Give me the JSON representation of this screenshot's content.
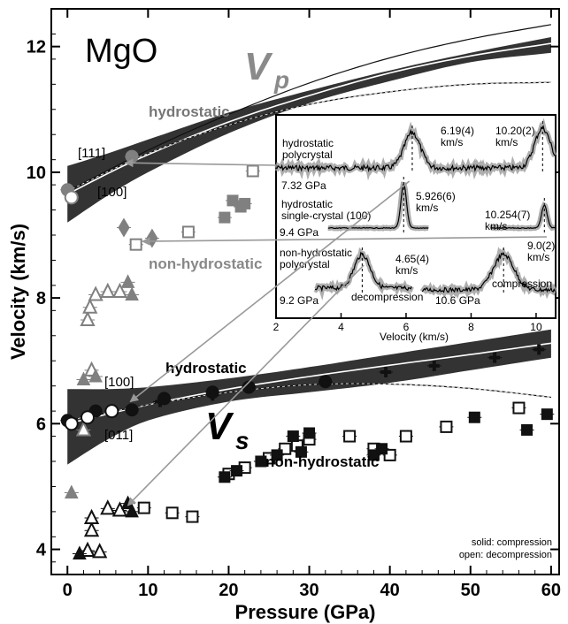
{
  "chart_data": {
    "type": "scatter",
    "title": "MgO",
    "xlabel": "Pressure (GPa)",
    "ylabel": "Velocity (km/s)",
    "xlim": [
      -2,
      61
    ],
    "ylim": [
      3.6,
      12.6
    ],
    "xticks": [
      0,
      10,
      20,
      30,
      40,
      50,
      60
    ],
    "yticks": [
      4,
      6,
      8,
      10,
      12
    ],
    "grid": false,
    "labels": {
      "vp_main": "V",
      "vp_sub": "p",
      "vs_main": "V",
      "vs_sub": "s",
      "vp_hydro": "hydrostatic",
      "vp_nonhydro": "non-hydrostatic",
      "vs_hydro": "hydrostatic",
      "vs_nonhydro": "non-hydrostatic",
      "dir_111": "[111]",
      "dir_100_p": "[100]",
      "dir_100_s": "[100]",
      "dir_011": "[011]",
      "legend_solid": "solid: compression",
      "legend_open": "open: decompression"
    },
    "colors": {
      "band": "#333333",
      "gray_marker": "#808080",
      "dark_marker": "#111111",
      "vp_label": "#8a8a8a"
    },
    "curves": {
      "vp_band_upper": [
        [
          0,
          10.1
        ],
        [
          5,
          10.3
        ],
        [
          10,
          10.52
        ],
        [
          20,
          10.95
        ],
        [
          30,
          11.3
        ],
        [
          40,
          11.62
        ],
        [
          50,
          11.9
        ],
        [
          60,
          12.15
        ]
      ],
      "vp_band_lower": [
        [
          0,
          9.2
        ],
        [
          5,
          9.63
        ],
        [
          10,
          10.0
        ],
        [
          20,
          10.62
        ],
        [
          30,
          11.1
        ],
        [
          40,
          11.45
        ],
        [
          50,
          11.75
        ],
        [
          60,
          11.9
        ]
      ],
      "vp_fit_main": [
        [
          0,
          9.65
        ],
        [
          5,
          9.98
        ],
        [
          10,
          10.28
        ],
        [
          20,
          10.8
        ],
        [
          30,
          11.22
        ],
        [
          40,
          11.58
        ],
        [
          50,
          11.85
        ],
        [
          60,
          12.05
        ]
      ],
      "vp_fit_upper": [
        [
          0,
          9.7
        ],
        [
          10,
          10.35
        ],
        [
          20,
          10.92
        ],
        [
          30,
          11.42
        ],
        [
          40,
          11.82
        ],
        [
          50,
          12.12
        ],
        [
          60,
          12.35
        ]
      ],
      "vp_fit_flat": [
        [
          0,
          9.7
        ],
        [
          10,
          10.3
        ],
        [
          20,
          10.75
        ],
        [
          30,
          11.08
        ],
        [
          40,
          11.28
        ],
        [
          50,
          11.4
        ],
        [
          60,
          11.43
        ]
      ],
      "vs_band_upper": [
        [
          0,
          6.55
        ],
        [
          5,
          6.55
        ],
        [
          10,
          6.58
        ],
        [
          20,
          6.72
        ],
        [
          30,
          6.9
        ],
        [
          40,
          7.1
        ],
        [
          50,
          7.3
        ],
        [
          60,
          7.5
        ]
      ],
      "vs_band_lower": [
        [
          0,
          5.35
        ],
        [
          5,
          5.75
        ],
        [
          10,
          6.05
        ],
        [
          20,
          6.35
        ],
        [
          30,
          6.5
        ],
        [
          40,
          6.65
        ],
        [
          50,
          6.85
        ],
        [
          60,
          7.05
        ]
      ],
      "vs_fit_main": [
        [
          0,
          6.0
        ],
        [
          10,
          6.3
        ],
        [
          20,
          6.55
        ],
        [
          30,
          6.75
        ],
        [
          40,
          6.93
        ],
        [
          50,
          7.1
        ],
        [
          60,
          7.28
        ]
      ],
      "vs_fit_flat": [
        [
          0,
          6.05
        ],
        [
          10,
          6.3
        ],
        [
          20,
          6.5
        ],
        [
          30,
          6.62
        ],
        [
          40,
          6.63
        ],
        [
          50,
          6.56
        ],
        [
          60,
          6.42
        ]
      ]
    },
    "series": [
      {
        "shape": "square",
        "fill": "open",
        "color": "#808080",
        "points": [
          [
            8.5,
            8.85
          ],
          [
            15,
            9.05
          ],
          [
            23,
            10.02
          ]
        ]
      },
      {
        "shape": "square",
        "fill": "solid",
        "color": "#808080",
        "points": [
          [
            19.5,
            9.28
          ],
          [
            20.5,
            9.55
          ],
          [
            21.5,
            9.45
          ],
          [
            22,
            9.5
          ]
        ]
      },
      {
        "shape": "diamond",
        "fill": "solid",
        "color": "#808080",
        "points": [
          [
            7,
            9.12
          ],
          [
            10.5,
            8.95
          ]
        ]
      },
      {
        "shape": "triangle",
        "fill": "open",
        "color": "#808080",
        "points": [
          [
            2.5,
            7.65
          ],
          [
            2.8,
            7.85
          ],
          [
            3.5,
            8.05
          ],
          [
            5,
            8.1
          ],
          [
            6.5,
            8.1
          ],
          [
            3,
            6.85
          ],
          [
            2,
            5.9
          ]
        ]
      },
      {
        "shape": "triangle",
        "fill": "solid",
        "color": "#808080",
        "points": [
          [
            7.5,
            8.25
          ],
          [
            8,
            8.05
          ],
          [
            3.5,
            6.75
          ],
          [
            2,
            6.7
          ],
          [
            0.5,
            4.9
          ]
        ]
      },
      {
        "shape": "circle",
        "fill": "solid",
        "color": "#808080",
        "points": [
          [
            0,
            9.72
          ],
          [
            8,
            10.25
          ]
        ]
      },
      {
        "shape": "circle",
        "fill": "open",
        "color": "#808080",
        "points": [
          [
            0.5,
            9.6
          ]
        ]
      },
      {
        "shape": "circle",
        "fill": "solid",
        "color": "#111111",
        "points": [
          [
            0,
            6.05
          ],
          [
            3.5,
            6.2
          ],
          [
            8,
            6.22
          ],
          [
            12,
            6.4
          ],
          [
            18,
            6.5
          ],
          [
            22.5,
            6.58
          ],
          [
            32,
            6.67
          ]
        ]
      },
      {
        "shape": "circle",
        "fill": "open",
        "color": "#111111",
        "points": [
          [
            0.5,
            6.0
          ],
          [
            2.5,
            6.1
          ],
          [
            5.5,
            6.2
          ]
        ]
      },
      {
        "shape": "cross",
        "fill": "solid",
        "color": "#111111",
        "points": [
          [
            11.5,
            6.35
          ],
          [
            18,
            6.45
          ],
          [
            22.5,
            6.6
          ],
          [
            32,
            6.65
          ],
          [
            39.5,
            6.82
          ],
          [
            45.5,
            6.92
          ],
          [
            53,
            7.05
          ],
          [
            58.5,
            7.18
          ]
        ]
      },
      {
        "shape": "square",
        "fill": "open",
        "color": "#111111",
        "points": [
          [
            9.5,
            4.66
          ],
          [
            13,
            4.58
          ],
          [
            15.5,
            4.52
          ],
          [
            20,
            5.2
          ],
          [
            22,
            5.3
          ],
          [
            25,
            5.45
          ],
          [
            27,
            5.6
          ],
          [
            28.5,
            5.65
          ],
          [
            30,
            5.75
          ],
          [
            35,
            5.8
          ],
          [
            38,
            5.6
          ],
          [
            40,
            5.5
          ],
          [
            42,
            5.8
          ],
          [
            47,
            5.95
          ],
          [
            56,
            6.25
          ]
        ]
      },
      {
        "shape": "square",
        "fill": "solid",
        "color": "#111111",
        "points": [
          [
            19.5,
            5.15
          ],
          [
            21,
            5.25
          ],
          [
            24,
            5.4
          ],
          [
            26,
            5.5
          ],
          [
            28,
            5.8
          ],
          [
            29,
            5.55
          ],
          [
            30,
            5.85
          ],
          [
            38,
            5.5
          ],
          [
            39,
            5.6
          ],
          [
            50.5,
            6.1
          ],
          [
            57,
            5.9
          ],
          [
            59.5,
            6.15
          ]
        ]
      },
      {
        "shape": "triangle",
        "fill": "open",
        "color": "#111111",
        "points": [
          [
            2.5,
            3.98
          ],
          [
            3,
            4.3
          ],
          [
            3,
            4.5
          ],
          [
            5,
            4.65
          ],
          [
            6.5,
            4.62
          ],
          [
            4,
            3.96
          ]
        ]
      },
      {
        "shape": "triangle",
        "fill": "solid",
        "color": "#111111",
        "points": [
          [
            1.5,
            3.93
          ],
          [
            7.5,
            4.73
          ],
          [
            8,
            4.6
          ]
        ]
      }
    ],
    "inset": {
      "xlabel": "Velocity (km/s)",
      "xlim": [
        2,
        10.6
      ],
      "xticks": [
        2,
        4,
        6,
        8,
        10
      ],
      "traces": [
        {
          "label": "hydrostatic\npolycrystal",
          "pressure": "7.32 GPa",
          "peaks": [
            {
              "pos": 6.19,
              "text": "6.19(4)\nkm/s"
            },
            {
              "pos": 10.2,
              "text": "10.20(2)\nkm/s"
            }
          ]
        },
        {
          "label": "hydrostatic\nsingle-crystal (100)",
          "pressure": "9.4 GPa",
          "peaks": [
            {
              "pos": 5.926,
              "text": "5.926(6)\nkm/s"
            },
            {
              "pos": 10.254,
              "text": "10.254(7)\nkm/s"
            }
          ]
        },
        {
          "label": "non-hydrostatic\npolycrystal",
          "pressure": "9.2 GPa",
          "extra": "decompression",
          "peaks": [
            {
              "pos": 4.65,
              "text": "4.65(4)\nkm/s"
            }
          ]
        },
        {
          "label": "",
          "pressure": "10.6 GPa",
          "extra": "compression",
          "peaks": [
            {
              "pos": 9.0,
              "text": "9.0(2)\nkm/s"
            }
          ]
        }
      ]
    }
  }
}
